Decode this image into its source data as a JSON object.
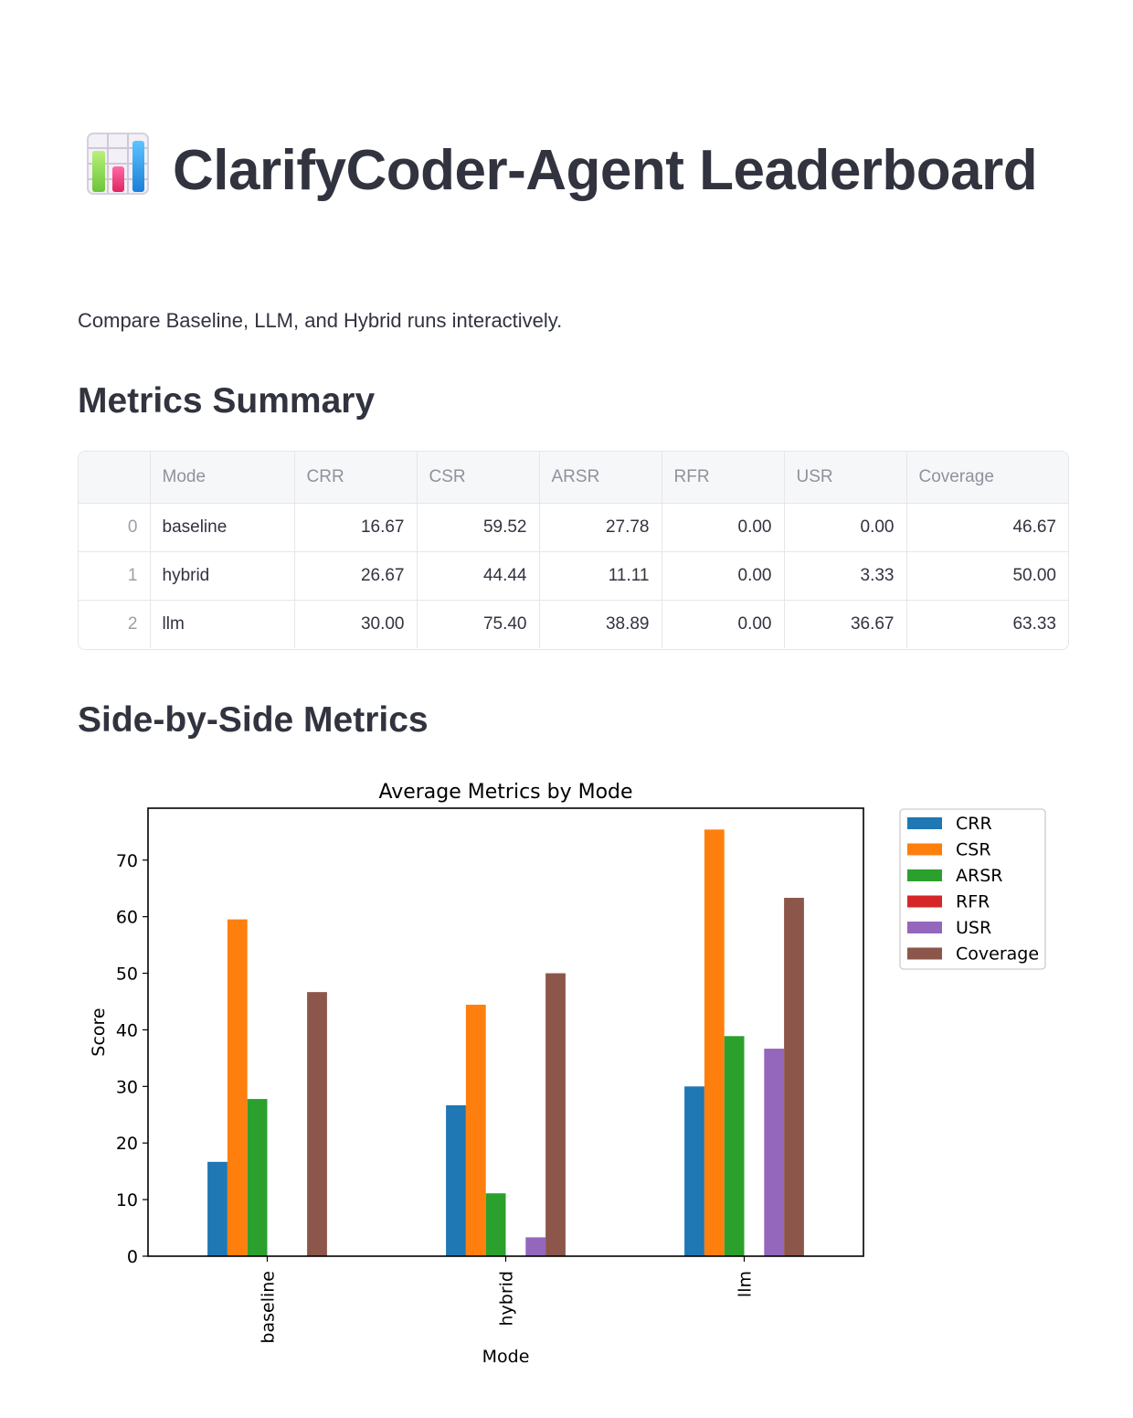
{
  "header": {
    "title": "ClarifyCoder-Agent Leaderboard",
    "title_icon": "bar-chart-icon",
    "caption": "Compare Baseline, LLM, and Hybrid runs interactively."
  },
  "summary": {
    "heading": "Metrics Summary",
    "columns": [
      "",
      "Mode",
      "CRR",
      "CSR",
      "ARSR",
      "RFR",
      "USR",
      "Coverage"
    ],
    "rows": [
      {
        "index": "0",
        "mode": "baseline",
        "crr": "16.67",
        "csr": "59.52",
        "arsr": "27.78",
        "rfr": "0.00",
        "usr": "0.00",
        "coverage": "46.67"
      },
      {
        "index": "1",
        "mode": "hybrid",
        "crr": "26.67",
        "csr": "44.44",
        "arsr": "11.11",
        "rfr": "0.00",
        "usr": "3.33",
        "coverage": "50.00"
      },
      {
        "index": "2",
        "mode": "llm",
        "crr": "30.00",
        "csr": "75.40",
        "arsr": "38.89",
        "rfr": "0.00",
        "usr": "36.67",
        "coverage": "63.33"
      }
    ]
  },
  "side_by_side": {
    "heading": "Side-by-Side Metrics"
  },
  "chart_data": {
    "type": "bar",
    "title": "Average Metrics by Mode",
    "xlabel": "Mode",
    "ylabel": "Score",
    "categories": [
      "baseline",
      "hybrid",
      "llm"
    ],
    "ylim": [
      0,
      79.17
    ],
    "yticks": [
      0,
      10,
      20,
      30,
      40,
      50,
      60,
      70
    ],
    "grid": false,
    "legend_position": "outside-top-right",
    "series": [
      {
        "name": "CRR",
        "color": "#1f77b4",
        "values": [
          16.67,
          26.67,
          30.0
        ]
      },
      {
        "name": "CSR",
        "color": "#ff7f0e",
        "values": [
          59.52,
          44.44,
          75.4
        ]
      },
      {
        "name": "ARSR",
        "color": "#2ca02c",
        "values": [
          27.78,
          11.11,
          38.89
        ]
      },
      {
        "name": "RFR",
        "color": "#d62728",
        "values": [
          0.0,
          0.0,
          0.0
        ]
      },
      {
        "name": "USR",
        "color": "#9467bd",
        "values": [
          0.0,
          3.33,
          36.67
        ]
      },
      {
        "name": "Coverage",
        "color": "#8c564b",
        "values": [
          46.67,
          50.0,
          63.33
        ]
      }
    ]
  }
}
